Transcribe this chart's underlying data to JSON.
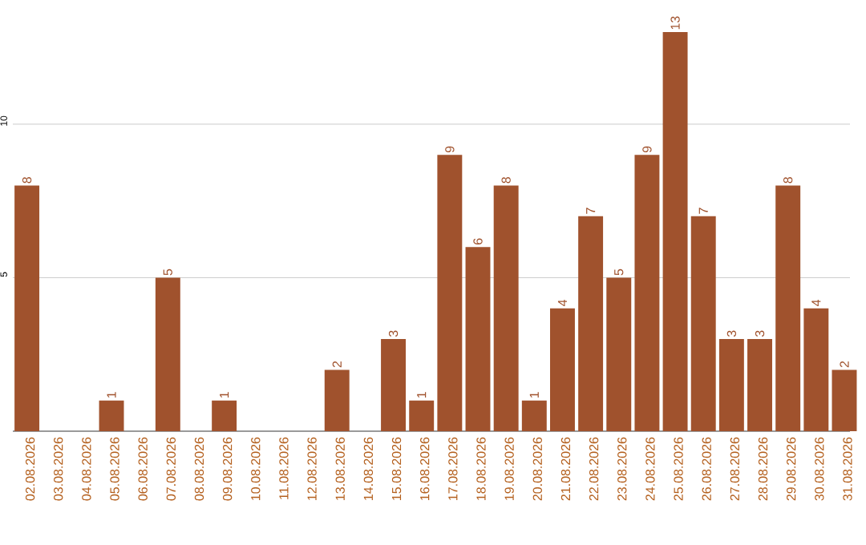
{
  "chart_data": {
    "type": "bar",
    "color": "#a0522d",
    "categories": [
      "02.08.2026",
      "03.08.2026",
      "04.08.2026",
      "05.08.2026",
      "06.08.2026",
      "07.08.2026",
      "08.08.2026",
      "09.08.2026",
      "10.08.2026",
      "11.08.2026",
      "12.08.2026",
      "13.08.2026",
      "14.08.2026",
      "15.08.2026",
      "16.08.2026",
      "17.08.2026",
      "18.08.2026",
      "19.08.2026",
      "20.08.2026",
      "21.08.2026",
      "22.08.2026",
      "23.08.2026",
      "24.08.2026",
      "25.08.2026",
      "26.08.2026",
      "27.08.2026",
      "28.08.2026",
      "29.08.2026",
      "30.08.2026",
      "31.08.2026"
    ],
    "values": [
      8,
      0,
      0,
      1,
      0,
      5,
      0,
      1,
      0,
      0,
      0,
      2,
      0,
      3,
      1,
      9,
      6,
      8,
      1,
      4,
      7,
      5,
      9,
      13,
      7,
      3,
      3,
      8,
      4,
      2
    ],
    "value_labels": [
      "8",
      null,
      null,
      "1",
      null,
      "5",
      null,
      "1",
      null,
      null,
      null,
      "2",
      null,
      "3",
      "1",
      "9",
      "6",
      "8",
      "1",
      "4",
      "7",
      "5",
      "9",
      "13",
      "7",
      "3",
      "3",
      "8",
      "4",
      "2"
    ],
    "ylim": [
      0,
      13
    ],
    "yticks": [
      5,
      10
    ],
    "grid": "y"
  }
}
